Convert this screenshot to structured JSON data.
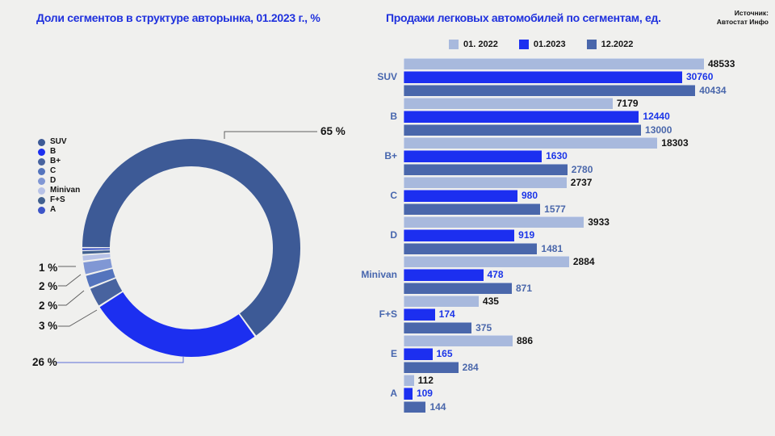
{
  "source": {
    "line1": "Источник:",
    "line2": "Автостат Инфо"
  },
  "colors": {
    "background": "#f0f0ee",
    "title_blue": "#1f31dd",
    "leader_gray": "#606060",
    "leader_blue": "#5b6ed6",
    "black_text": "#141414"
  },
  "chart_data": [
    {
      "type": "pie",
      "subtype": "donut",
      "title": "Доли сегментов в структуре авторынка, 01.2023 г., %",
      "legend_position": "left",
      "slices": [
        {
          "label": "SUV",
          "share": 65,
          "display": "65 %",
          "color": "#3d5a96"
        },
        {
          "label": "B",
          "share": 26,
          "display": "26 %",
          "color": "#1c2ff0"
        },
        {
          "label": "B+",
          "share": 3,
          "display": "3 %",
          "color": "#48639f"
        },
        {
          "label": "C",
          "share": 2,
          "display": "2 %",
          "color": "#5474bd"
        },
        {
          "label": "D",
          "share": 2,
          "display": "2 %",
          "color": "#8097d4"
        },
        {
          "label": "Minivan",
          "share": 1,
          "display": "1 %",
          "color": "#b7c2e7"
        },
        {
          "label": "F+S",
          "share": 0.6,
          "display": "",
          "color": "#41608f"
        },
        {
          "label": "A",
          "share": 0.4,
          "display": "",
          "color": "#3d55c8"
        }
      ]
    },
    {
      "type": "bar",
      "orientation": "horizontal",
      "title": "Продажи легковых автомобилей по сегментам, ед.",
      "scale": {
        "type": "log",
        "note": "bar length proportional to log10(value)"
      },
      "grid": false,
      "legend_position": "top",
      "categories": [
        "SUV",
        "B",
        "B+",
        "C",
        "D",
        "Minivan",
        "F+S",
        "E",
        "A"
      ],
      "series": [
        {
          "name": "01. 2022",
          "color": "#a8b9dd",
          "label_color": "#141414",
          "values": [
            48533,
            7179,
            18303,
            2737,
            3933,
            2884,
            435,
            886,
            112
          ]
        },
        {
          "name": "01.2023",
          "color": "#1c2ff0",
          "label_color": "#1b35e8",
          "values": [
            30760,
            12440,
            1630,
            980,
            919,
            478,
            174,
            165,
            109
          ]
        },
        {
          "name": "12.2022",
          "color": "#4a67ab",
          "label_color": "#4a67ab",
          "values": [
            40434,
            13000,
            2780,
            1577,
            1481,
            871,
            375,
            284,
            144
          ]
        }
      ]
    }
  ]
}
